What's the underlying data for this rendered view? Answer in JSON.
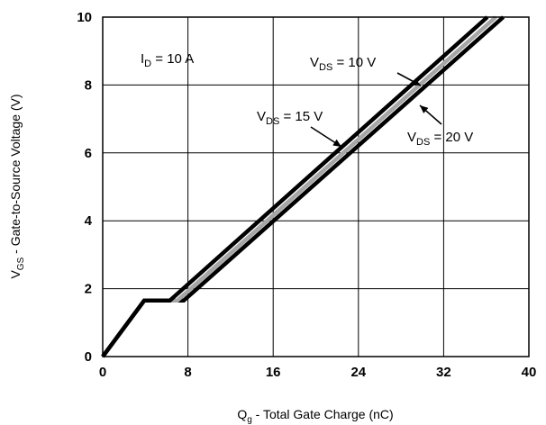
{
  "chart_data": {
    "type": "line",
    "xlabel": {
      "main": "Q",
      "sub": "g",
      "rest": " - Total Gate Charge (nC)"
    },
    "ylabel": {
      "main": "V",
      "sub": "GS",
      "rest": " - Gate-to-Source Voltage (V)"
    },
    "xlim": [
      0,
      40
    ],
    "ylim": [
      0,
      10
    ],
    "x_ticks": [
      0,
      8,
      16,
      24,
      32,
      40
    ],
    "x_tick_labels": [
      "0",
      "8",
      "16",
      "24",
      "32",
      "40"
    ],
    "y_ticks": [
      0,
      2,
      4,
      6,
      8,
      10
    ],
    "y_tick_labels": [
      "0",
      "2",
      "4",
      "6",
      "8",
      "10"
    ],
    "grid": true,
    "series": [
      {
        "name": "VDS = 10 V",
        "color": "#000000",
        "points": [
          [
            0,
            0
          ],
          [
            3.9,
            1.65
          ],
          [
            6.3,
            1.65
          ],
          [
            36.1,
            10
          ]
        ]
      },
      {
        "name": "VDS = 15 V",
        "color": "#a6a6a6",
        "points": [
          [
            0,
            0
          ],
          [
            3.9,
            1.65
          ],
          [
            7.0,
            1.65
          ],
          [
            36.9,
            10
          ]
        ]
      },
      {
        "name": "VDS = 20 V",
        "color": "#000000",
        "points": [
          [
            0,
            0
          ],
          [
            3.9,
            1.65
          ],
          [
            7.6,
            1.65
          ],
          [
            37.6,
            10
          ]
        ]
      }
    ],
    "annotations": [
      {
        "id": "id",
        "main": "I",
        "sub": "D",
        "rest": " = 10 A"
      },
      {
        "id": "vds10",
        "main": "V",
        "sub": "DS",
        "rest": " = 10 V"
      },
      {
        "id": "vds15",
        "main": "V",
        "sub": "DS",
        "rest": " = 15 V"
      },
      {
        "id": "vds20",
        "main": "V",
        "sub": "DS",
        "rest": " = 20 V"
      }
    ]
  }
}
